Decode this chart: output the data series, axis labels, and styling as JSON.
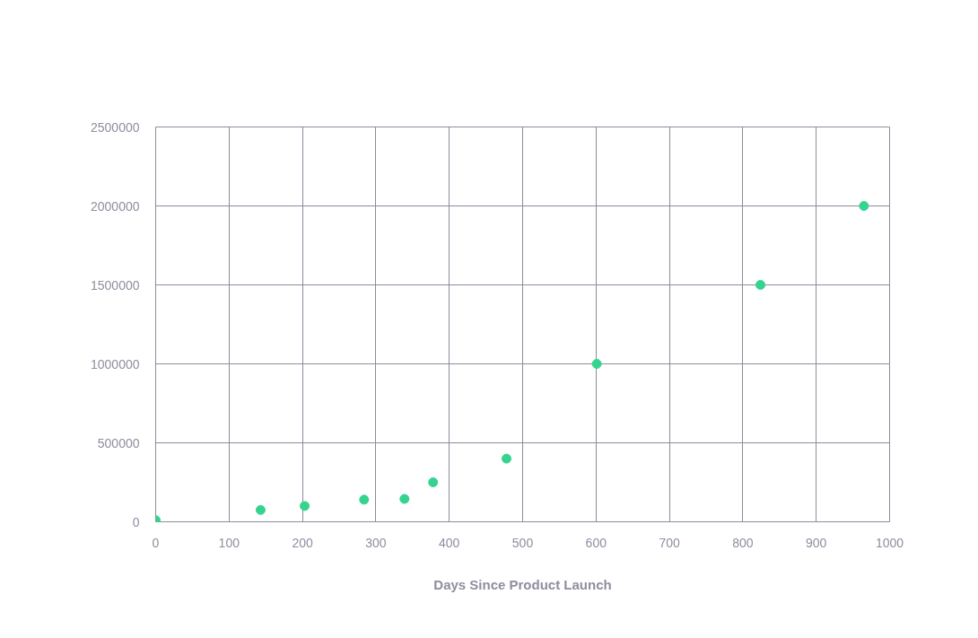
{
  "chart_data": {
    "type": "scatter",
    "xlabel": "Days Since Product Launch",
    "x": [
      0,
      143,
      203,
      284,
      339,
      378,
      478,
      601,
      824,
      965
    ],
    "series": [
      {
        "color": "#34d48f",
        "values": [
          10000,
          75000,
          100000,
          140000,
          145000,
          250000,
          400000,
          1000000,
          1500000,
          2000000
        ]
      }
    ],
    "xlim": [
      0,
      1000
    ],
    "xticks": [
      0,
      100,
      200,
      300,
      400,
      500,
      600,
      700,
      800,
      900,
      1000
    ],
    "ylim": [
      0,
      2500000
    ],
    "yticks": [
      0,
      500000,
      1000000,
      1500000,
      2000000,
      2500000
    ],
    "grid": true,
    "marker": "circle"
  }
}
